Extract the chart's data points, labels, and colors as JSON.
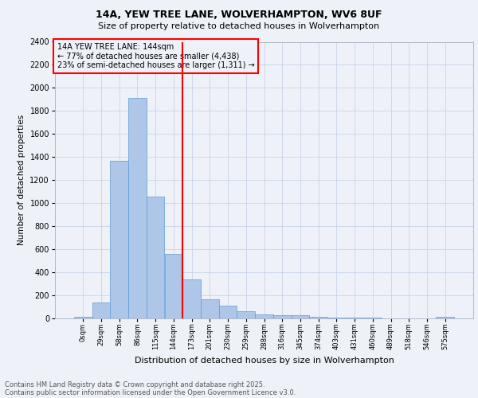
{
  "title_line1": "14A, YEW TREE LANE, WOLVERHAMPTON, WV6 8UF",
  "title_line2": "Size of property relative to detached houses in Wolverhampton",
  "xlabel": "Distribution of detached houses by size in Wolverhampton",
  "ylabel": "Number of detached properties",
  "bin_labels": [
    "0sqm",
    "29sqm",
    "58sqm",
    "86sqm",
    "115sqm",
    "144sqm",
    "173sqm",
    "201sqm",
    "230sqm",
    "259sqm",
    "288sqm",
    "316sqm",
    "345sqm",
    "374sqm",
    "403sqm",
    "431sqm",
    "460sqm",
    "489sqm",
    "518sqm",
    "546sqm",
    "575sqm"
  ],
  "bar_heights": [
    15,
    135,
    1370,
    1910,
    1060,
    560,
    335,
    165,
    110,
    60,
    35,
    30,
    25,
    15,
    5,
    5,
    5,
    2,
    2,
    0,
    15
  ],
  "bar_color": "#aec6e8",
  "bar_edge_color": "#5b9bd5",
  "grid_color": "#c8d4e8",
  "vline_x": 5.5,
  "vline_color": "red",
  "annotation_title": "14A YEW TREE LANE: 144sqm",
  "annotation_line1": "← 77% of detached houses are smaller (4,438)",
  "annotation_line2": "23% of semi-detached houses are larger (1,311) →",
  "annotation_box_color": "red",
  "ylim": [
    0,
    2400
  ],
  "yticks": [
    0,
    200,
    400,
    600,
    800,
    1000,
    1200,
    1400,
    1600,
    1800,
    2000,
    2200,
    2400
  ],
  "footer_line1": "Contains HM Land Registry data © Crown copyright and database right 2025.",
  "footer_line2": "Contains public sector information licensed under the Open Government Licence v3.0.",
  "background_color": "#eef2f8"
}
